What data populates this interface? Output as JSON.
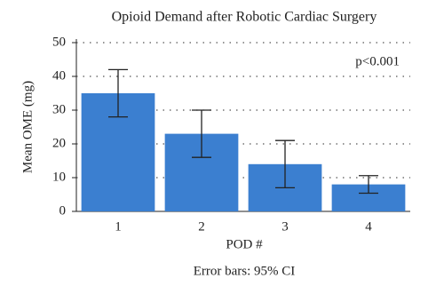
{
  "chart_data": {
    "type": "bar",
    "title": "Opioid Demand after Robotic Cardiac Surgery",
    "xlabel": "POD #",
    "ylabel": "Mean OME (mg)",
    "annotation": "p<0.001",
    "footnote": "Error bars: 95% CI",
    "categories": [
      "1",
      "2",
      "3",
      "4"
    ],
    "values": [
      35,
      23,
      14,
      8
    ],
    "errors": [
      7,
      7,
      7,
      2.6
    ],
    "color": "#3b7fd0",
    "ylim": [
      0,
      50
    ],
    "yticks": [
      0,
      10,
      20,
      30,
      40,
      50
    ],
    "grid": true
  }
}
